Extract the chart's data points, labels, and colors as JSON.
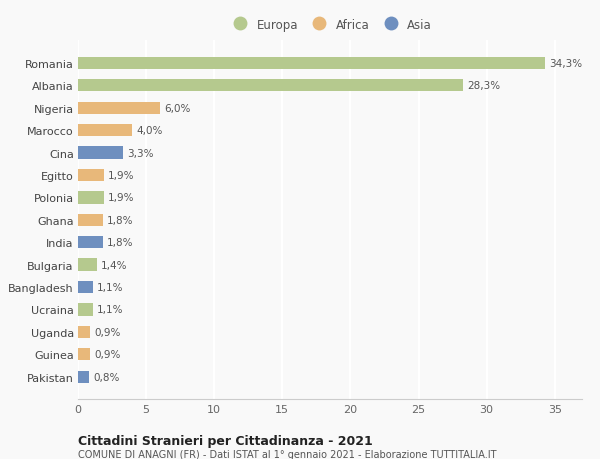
{
  "countries": [
    "Romania",
    "Albania",
    "Nigeria",
    "Marocco",
    "Cina",
    "Egitto",
    "Polonia",
    "Ghana",
    "India",
    "Bulgaria",
    "Bangladesh",
    "Ucraina",
    "Uganda",
    "Guinea",
    "Pakistan"
  ],
  "values": [
    34.3,
    28.3,
    6.0,
    4.0,
    3.3,
    1.9,
    1.9,
    1.8,
    1.8,
    1.4,
    1.1,
    1.1,
    0.9,
    0.9,
    0.8
  ],
  "labels": [
    "34,3%",
    "28,3%",
    "6,0%",
    "4,0%",
    "3,3%",
    "1,9%",
    "1,9%",
    "1,8%",
    "1,8%",
    "1,4%",
    "1,1%",
    "1,1%",
    "0,9%",
    "0,9%",
    "0,8%"
  ],
  "continents": [
    "Europa",
    "Europa",
    "Africa",
    "Africa",
    "Asia",
    "Africa",
    "Europa",
    "Africa",
    "Asia",
    "Europa",
    "Asia",
    "Europa",
    "Africa",
    "Africa",
    "Asia"
  ],
  "colors": {
    "Europa": "#b5c98e",
    "Africa": "#e8b87a",
    "Asia": "#6e8fbf"
  },
  "title": "Cittadini Stranieri per Cittadinanza - 2021",
  "subtitle": "COMUNE DI ANAGNI (FR) - Dati ISTAT al 1° gennaio 2021 - Elaborazione TUTTITALIA.IT",
  "xlim": [
    0,
    37
  ],
  "xticks": [
    0,
    5,
    10,
    15,
    20,
    25,
    30,
    35
  ],
  "background_color": "#f9f9f9",
  "grid_color": "#ffffff",
  "bar_height": 0.55
}
